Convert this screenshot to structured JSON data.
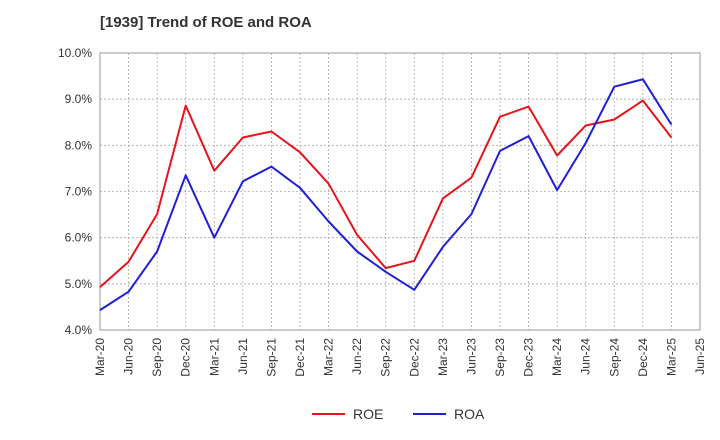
{
  "chart_data": {
    "type": "line",
    "title": "[1939]  Trend of ROE and ROA",
    "xlabel": "",
    "ylabel": "",
    "categories": [
      "Mar-20",
      "Jun-20",
      "Sep-20",
      "Dec-20",
      "Mar-21",
      "Jun-21",
      "Sep-21",
      "Dec-21",
      "Mar-22",
      "Jun-22",
      "Sep-22",
      "Dec-22",
      "Mar-23",
      "Jun-23",
      "Sep-23",
      "Dec-23",
      "Mar-24",
      "Jun-24",
      "Sep-24",
      "Dec-24",
      "Mar-25",
      "Jun-25"
    ],
    "ylim": [
      4.0,
      10.0
    ],
    "yticks": [
      "4.0%",
      "5.0%",
      "6.0%",
      "7.0%",
      "8.0%",
      "9.0%",
      "10.0%"
    ],
    "grid": true,
    "legend_position": "bottom",
    "series": [
      {
        "name": "ROE",
        "color": "#e8131b",
        "values": [
          4.93,
          5.48,
          6.51,
          8.86,
          7.45,
          8.17,
          8.3,
          7.85,
          7.17,
          6.06,
          5.34,
          5.5,
          6.85,
          7.3,
          8.62,
          8.84,
          7.78,
          8.43,
          8.56,
          8.97,
          8.17,
          null
        ]
      },
      {
        "name": "ROA",
        "color": "#1f1fd6",
        "values": [
          4.43,
          4.83,
          5.7,
          7.35,
          6.0,
          7.22,
          7.54,
          7.08,
          6.35,
          5.7,
          5.26,
          4.87,
          5.8,
          6.51,
          7.88,
          8.2,
          7.03,
          8.05,
          9.27,
          9.43,
          8.45,
          null
        ]
      }
    ]
  }
}
